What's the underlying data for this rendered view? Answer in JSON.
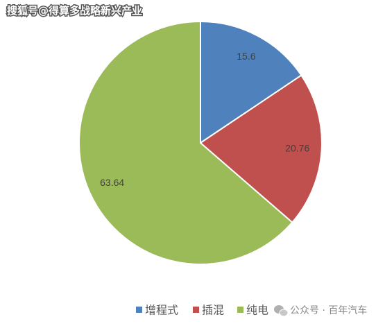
{
  "chart_data": {
    "type": "pie",
    "categories": [
      "增程式",
      "插混",
      "纯电"
    ],
    "values": [
      15.6,
      20.76,
      63.64
    ],
    "colors": [
      "#4f81bd",
      "#c0504d",
      "#9bbb59"
    ],
    "legend": "bottom",
    "watermark_top": "搜狐号@得算多战略新兴产业",
    "watermark_bottom": "公众号 · 百年汽车"
  }
}
